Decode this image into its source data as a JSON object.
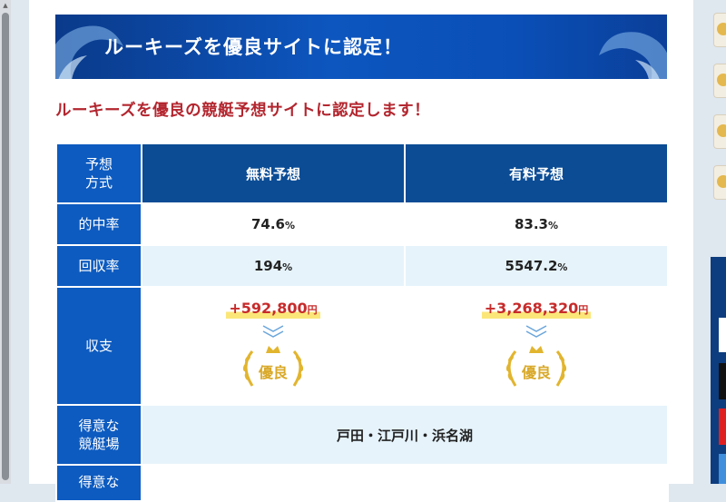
{
  "banner": {
    "title": "ルーキーズを優良サイトに認定！"
  },
  "subheading": "ルーキーズを優良の競艇予想サイトに認定します！",
  "table": {
    "header": {
      "label": "予想\n方式",
      "free": "無料予想",
      "paid": "有料予想"
    },
    "hit_rate": {
      "label": "的中率",
      "free": "74.6",
      "paid": "83.3",
      "unit": "%"
    },
    "recovery_rate": {
      "label": "回収率",
      "free": "194",
      "paid": "5547.2",
      "unit": "%"
    },
    "balance": {
      "label": "収支",
      "free": "+592,800",
      "paid": "+3,268,320",
      "unit": "円",
      "badge_free": "優良",
      "badge_paid": "優良"
    },
    "venues": {
      "label": "得意な\n競艇場",
      "value": "戸田・江戸川・浜名湖"
    },
    "next_label": "得意な"
  },
  "colors": {
    "header_bg": "#0b4c95",
    "label_bg": "#0d5bc0",
    "row_alt": "#e6f3fb",
    "accent_red": "#b3262f",
    "badge_gold": "#d9a929"
  },
  "icons": {
    "chevron": "double-chevron-down-icon",
    "badge": "crown-laurel-icon"
  }
}
